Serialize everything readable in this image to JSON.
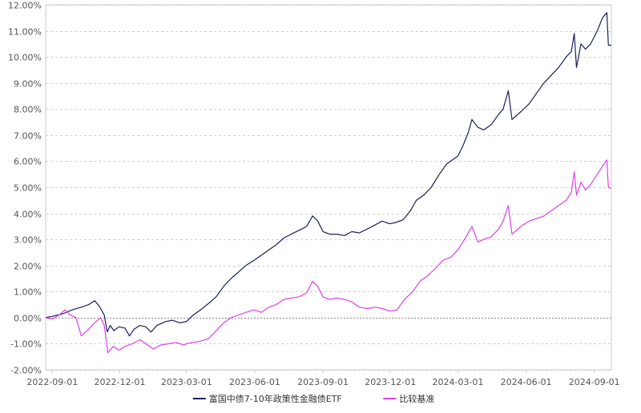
{
  "chart_data": {
    "type": "line",
    "title": "",
    "xlabel": "",
    "ylabel": "",
    "ylim": [
      -2.0,
      12.0
    ],
    "y_ticks": [
      "-2.00%",
      "-1.00%",
      "0.00%",
      "1.00%",
      "2.00%",
      "3.00%",
      "4.00%",
      "5.00%",
      "6.00%",
      "7.00%",
      "8.00%",
      "9.00%",
      "10.00%",
      "11.00%",
      "12.00%"
    ],
    "x_ticks": [
      "2022-09-01",
      "2022-12-01",
      "2023-03-01",
      "2023-06-01",
      "2023-09-01",
      "2023-12-01",
      "2024-03-01",
      "2024-06-01",
      "2024-09-01"
    ],
    "x_range": [
      "2022-08-23",
      "2024-09-24"
    ],
    "grid": true,
    "legend_position": "bottom-center",
    "series": [
      {
        "name": "富国中债7-10年政策性金融债ETF",
        "color": "#1b1f5a",
        "points": [
          [
            "2022-08-23",
            0.0
          ],
          [
            "2022-09-01",
            0.05
          ],
          [
            "2022-09-15",
            0.15
          ],
          [
            "2022-09-28",
            0.3
          ],
          [
            "2022-10-10",
            0.4
          ],
          [
            "2022-10-20",
            0.5
          ],
          [
            "2022-10-28",
            0.65
          ],
          [
            "2022-11-03",
            0.45
          ],
          [
            "2022-11-10",
            0.1
          ],
          [
            "2022-11-14",
            -0.55
          ],
          [
            "2022-11-18",
            -0.3
          ],
          [
            "2022-11-23",
            -0.5
          ],
          [
            "2022-11-30",
            -0.35
          ],
          [
            "2022-12-08",
            -0.4
          ],
          [
            "2022-12-14",
            -0.7
          ],
          [
            "2022-12-20",
            -0.45
          ],
          [
            "2022-12-28",
            -0.3
          ],
          [
            "2023-01-05",
            -0.35
          ],
          [
            "2023-01-12",
            -0.55
          ],
          [
            "2023-01-20",
            -0.3
          ],
          [
            "2023-02-01",
            -0.15
          ],
          [
            "2023-02-10",
            -0.1
          ],
          [
            "2023-02-20",
            -0.2
          ],
          [
            "2023-03-01",
            -0.15
          ],
          [
            "2023-03-10",
            0.1
          ],
          [
            "2023-03-20",
            0.3
          ],
          [
            "2023-03-31",
            0.55
          ],
          [
            "2023-04-10",
            0.8
          ],
          [
            "2023-04-20",
            1.2
          ],
          [
            "2023-04-30",
            1.5
          ],
          [
            "2023-05-10",
            1.75
          ],
          [
            "2023-05-20",
            2.0
          ],
          [
            "2023-05-31",
            2.2
          ],
          [
            "2023-06-10",
            2.4
          ],
          [
            "2023-06-20",
            2.6
          ],
          [
            "2023-06-30",
            2.8
          ],
          [
            "2023-07-10",
            3.05
          ],
          [
            "2023-07-20",
            3.2
          ],
          [
            "2023-07-31",
            3.35
          ],
          [
            "2023-08-10",
            3.5
          ],
          [
            "2023-08-18",
            3.9
          ],
          [
            "2023-08-25",
            3.7
          ],
          [
            "2023-09-01",
            3.3
          ],
          [
            "2023-09-10",
            3.2
          ],
          [
            "2023-09-20",
            3.2
          ],
          [
            "2023-09-30",
            3.15
          ],
          [
            "2023-10-10",
            3.3
          ],
          [
            "2023-10-20",
            3.25
          ],
          [
            "2023-10-31",
            3.4
          ],
          [
            "2023-11-10",
            3.55
          ],
          [
            "2023-11-20",
            3.7
          ],
          [
            "2023-11-30",
            3.6
          ],
          [
            "2023-12-08",
            3.65
          ],
          [
            "2023-12-18",
            3.75
          ],
          [
            "2023-12-28",
            4.1
          ],
          [
            "2024-01-05",
            4.5
          ],
          [
            "2024-01-15",
            4.7
          ],
          [
            "2024-01-25",
            5.0
          ],
          [
            "2024-02-05",
            5.5
          ],
          [
            "2024-02-15",
            5.9
          ],
          [
            "2024-02-25",
            6.1
          ],
          [
            "2024-03-01",
            6.2
          ],
          [
            "2024-03-08",
            6.6
          ],
          [
            "2024-03-15",
            7.1
          ],
          [
            "2024-03-20",
            7.6
          ],
          [
            "2024-03-28",
            7.3
          ],
          [
            "2024-04-05",
            7.2
          ],
          [
            "2024-04-15",
            7.4
          ],
          [
            "2024-04-25",
            7.8
          ],
          [
            "2024-05-01",
            8.0
          ],
          [
            "2024-05-08",
            8.7
          ],
          [
            "2024-05-13",
            7.6
          ],
          [
            "2024-05-25",
            7.9
          ],
          [
            "2024-06-05",
            8.2
          ],
          [
            "2024-06-15",
            8.6
          ],
          [
            "2024-06-25",
            9.0
          ],
          [
            "2024-07-05",
            9.3
          ],
          [
            "2024-07-15",
            9.6
          ],
          [
            "2024-07-25",
            10.0
          ],
          [
            "2024-08-01",
            10.2
          ],
          [
            "2024-08-05",
            10.9
          ],
          [
            "2024-08-08",
            9.6
          ],
          [
            "2024-08-14",
            10.5
          ],
          [
            "2024-08-20",
            10.3
          ],
          [
            "2024-08-27",
            10.5
          ],
          [
            "2024-09-05",
            11.0
          ],
          [
            "2024-09-12",
            11.5
          ],
          [
            "2024-09-18",
            11.7
          ],
          [
            "2024-09-20",
            10.45
          ],
          [
            "2024-09-24",
            10.45
          ]
        ]
      },
      {
        "name": "比较基准",
        "color": "#e040e8",
        "points": [
          [
            "2022-08-23",
            0.0
          ],
          [
            "2022-09-01",
            -0.05
          ],
          [
            "2022-09-10",
            0.1
          ],
          [
            "2022-09-18",
            0.3
          ],
          [
            "2022-09-25",
            0.1
          ],
          [
            "2022-10-03",
            0.0
          ],
          [
            "2022-10-10",
            -0.7
          ],
          [
            "2022-10-18",
            -0.5
          ],
          [
            "2022-10-28",
            -0.2
          ],
          [
            "2022-11-05",
            0.0
          ],
          [
            "2022-11-10",
            -0.3
          ],
          [
            "2022-11-15",
            -1.35
          ],
          [
            "2022-11-22",
            -1.1
          ],
          [
            "2022-11-30",
            -1.25
          ],
          [
            "2022-12-08",
            -1.1
          ],
          [
            "2022-12-18",
            -1.0
          ],
          [
            "2022-12-28",
            -0.85
          ],
          [
            "2023-01-05",
            -1.0
          ],
          [
            "2023-01-15",
            -1.2
          ],
          [
            "2023-01-25",
            -1.05
          ],
          [
            "2023-02-05",
            -1.0
          ],
          [
            "2023-02-15",
            -0.95
          ],
          [
            "2023-02-25",
            -1.05
          ],
          [
            "2023-03-01",
            -1.0
          ],
          [
            "2023-03-10",
            -0.95
          ],
          [
            "2023-03-20",
            -0.9
          ],
          [
            "2023-03-31",
            -0.8
          ],
          [
            "2023-04-10",
            -0.5
          ],
          [
            "2023-04-20",
            -0.2
          ],
          [
            "2023-04-30",
            0.0
          ],
          [
            "2023-05-10",
            0.1
          ],
          [
            "2023-05-20",
            0.2
          ],
          [
            "2023-05-31",
            0.3
          ],
          [
            "2023-06-10",
            0.2
          ],
          [
            "2023-06-20",
            0.4
          ],
          [
            "2023-06-30",
            0.5
          ],
          [
            "2023-07-10",
            0.7
          ],
          [
            "2023-07-20",
            0.75
          ],
          [
            "2023-07-31",
            0.8
          ],
          [
            "2023-08-10",
            0.95
          ],
          [
            "2023-08-18",
            1.4
          ],
          [
            "2023-08-25",
            1.2
          ],
          [
            "2023-09-01",
            0.8
          ],
          [
            "2023-09-10",
            0.7
          ],
          [
            "2023-09-20",
            0.75
          ],
          [
            "2023-09-30",
            0.7
          ],
          [
            "2023-10-10",
            0.6
          ],
          [
            "2023-10-20",
            0.4
          ],
          [
            "2023-10-31",
            0.35
          ],
          [
            "2023-11-10",
            0.4
          ],
          [
            "2023-11-20",
            0.35
          ],
          [
            "2023-11-30",
            0.25
          ],
          [
            "2023-12-10",
            0.3
          ],
          [
            "2023-12-20",
            0.7
          ],
          [
            "2023-12-31",
            1.0
          ],
          [
            "2024-01-10",
            1.4
          ],
          [
            "2024-01-20",
            1.6
          ],
          [
            "2024-01-31",
            1.9
          ],
          [
            "2024-02-10",
            2.2
          ],
          [
            "2024-02-20",
            2.3
          ],
          [
            "2024-03-01",
            2.6
          ],
          [
            "2024-03-10",
            3.0
          ],
          [
            "2024-03-20",
            3.5
          ],
          [
            "2024-03-28",
            2.9
          ],
          [
            "2024-04-05",
            3.0
          ],
          [
            "2024-04-15",
            3.1
          ],
          [
            "2024-04-25",
            3.4
          ],
          [
            "2024-05-01",
            3.7
          ],
          [
            "2024-05-08",
            4.3
          ],
          [
            "2024-05-13",
            3.2
          ],
          [
            "2024-05-25",
            3.5
          ],
          [
            "2024-06-05",
            3.7
          ],
          [
            "2024-06-15",
            3.8
          ],
          [
            "2024-06-25",
            3.9
          ],
          [
            "2024-07-05",
            4.1
          ],
          [
            "2024-07-15",
            4.3
          ],
          [
            "2024-07-25",
            4.5
          ],
          [
            "2024-08-01",
            4.8
          ],
          [
            "2024-08-05",
            5.6
          ],
          [
            "2024-08-08",
            4.7
          ],
          [
            "2024-08-14",
            5.2
          ],
          [
            "2024-08-20",
            4.9
          ],
          [
            "2024-08-27",
            5.1
          ],
          [
            "2024-09-05",
            5.5
          ],
          [
            "2024-09-12",
            5.8
          ],
          [
            "2024-09-18",
            6.05
          ],
          [
            "2024-09-20",
            5.0
          ],
          [
            "2024-09-24",
            4.95
          ]
        ]
      }
    ]
  }
}
